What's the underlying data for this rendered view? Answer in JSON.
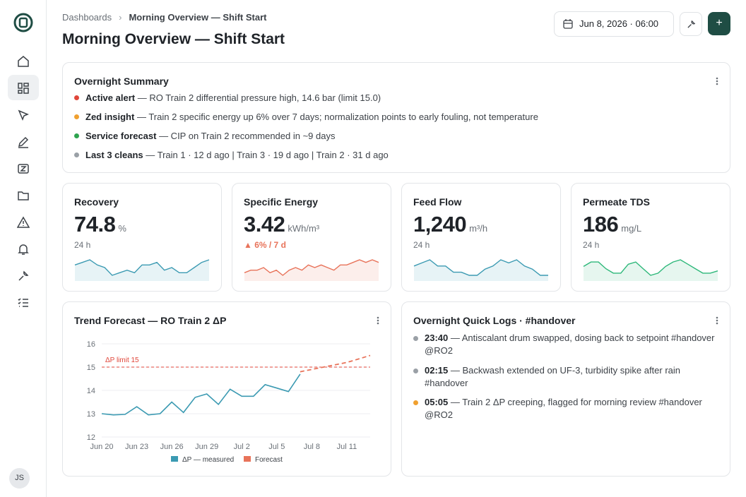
{
  "breadcrumb": {
    "parent": "Dashboards",
    "current": "Morning Overview — Shift Start"
  },
  "header": {
    "title": "Morning Overview — Shift Start",
    "date": "Jun 8, 2026 · 06:00"
  },
  "user": {
    "initials": "JS"
  },
  "summary": {
    "title": "Overnight Summary",
    "items": [
      {
        "label": "Active alert",
        "text": " — RO Train 2 differential pressure high, 14.6 bar (limit 15.0)",
        "color": "#e0463a"
      },
      {
        "label": "Zed insight",
        "text": " — Train 2 specific energy up 6% over 7 days; normalization points to early fouling, not temperature",
        "color": "#f0a030"
      },
      {
        "label": "Service forecast",
        "text": " — CIP on Train 2 recommended in ~9 days",
        "color": "#2ea44f"
      },
      {
        "label": "Last 3 cleans",
        "text": " — Train 1 · 12 d ago | Train 3 · 19 d ago | Train 2 · 31 d ago",
        "color": "#9aa0a6"
      }
    ]
  },
  "kpis": [
    {
      "label": "Recovery",
      "value": "74.8",
      "unit": "%",
      "sub": "24 h",
      "color": "#3b9ab2",
      "spark": [
        5,
        6,
        7,
        5,
        4,
        1,
        2,
        3,
        2,
        5,
        5,
        6,
        3,
        4,
        2,
        2,
        4,
        6,
        7
      ]
    },
    {
      "label": "Specific Energy",
      "value": "3.42",
      "unit": "kWh/m³",
      "sub": "▲ 6% / 7 d",
      "color": "#e8735a",
      "spark": [
        2,
        3,
        3,
        4,
        2,
        3,
        1,
        3,
        4,
        3,
        5,
        4,
        5,
        4,
        3,
        5,
        5,
        6,
        7,
        6,
        7,
        6
      ]
    },
    {
      "label": "Feed Flow",
      "value": "1,240",
      "unit": "m³/h",
      "sub": "24 h",
      "color": "#3b9ab2",
      "spark": [
        5,
        6,
        7,
        5,
        5,
        3,
        3,
        2,
        2,
        4,
        5,
        7,
        6,
        7,
        5,
        4,
        2,
        2
      ]
    },
    {
      "label": "Permeate TDS",
      "value": "186",
      "unit": "mg/L",
      "sub": "24 h",
      "color": "#2eb87a",
      "spark": [
        4,
        6,
        6,
        3,
        1,
        1,
        5,
        6,
        3,
        0,
        1,
        4,
        6,
        7,
        5,
        3,
        1,
        1,
        2
      ]
    }
  ],
  "trend": {
    "title": "Trend Forecast — RO Train 2 ΔP",
    "chart_data": {
      "type": "line",
      "categories": [
        "Jun 20",
        null,
        null,
        "Jun 23",
        null,
        null,
        "Jun 26",
        null,
        null,
        "Jun 29",
        null,
        null,
        "Jul 2",
        null,
        null,
        "Jul 5",
        null,
        null,
        "Jul 8",
        null,
        null,
        "Jul 11",
        null,
        null
      ],
      "series": [
        {
          "name": "ΔP — measured",
          "color": "#3b9ab2",
          "values": [
            13.0,
            12.95,
            12.97,
            13.3,
            12.95,
            13.0,
            13.5,
            13.05,
            13.7,
            13.85,
            13.4,
            14.05,
            13.75,
            13.75,
            14.25,
            14.1,
            13.95,
            14.7,
            null,
            null,
            null,
            null,
            null,
            null
          ]
        },
        {
          "name": "Forecast",
          "color": "#e8735a",
          "values": [
            null,
            null,
            null,
            null,
            null,
            null,
            null,
            null,
            null,
            null,
            null,
            null,
            null,
            null,
            null,
            null,
            null,
            14.8,
            14.9,
            15.0,
            15.1,
            15.2,
            15.35,
            15.5
          ]
        }
      ],
      "limit": {
        "value": 15,
        "label": "ΔP limit 15",
        "color": "#e0463a"
      },
      "ylim": [
        12,
        16
      ],
      "yticks": [
        12,
        13,
        14,
        15,
        16
      ],
      "grid": true
    }
  },
  "logs": {
    "title": "Overnight Quick Logs · #handover",
    "items": [
      {
        "time": "23:40",
        "text": " — Antiscalant drum swapped, dosing back to setpoint #handover @RO2",
        "color": "#9aa0a6"
      },
      {
        "time": "02:15",
        "text": " — Backwash extended on UF-3, turbidity spike after rain #handover",
        "color": "#9aa0a6"
      },
      {
        "time": "05:05",
        "text": " — Train 2 ΔP creeping, flagged for morning review #handover @RO2",
        "color": "#f0a030"
      }
    ]
  }
}
